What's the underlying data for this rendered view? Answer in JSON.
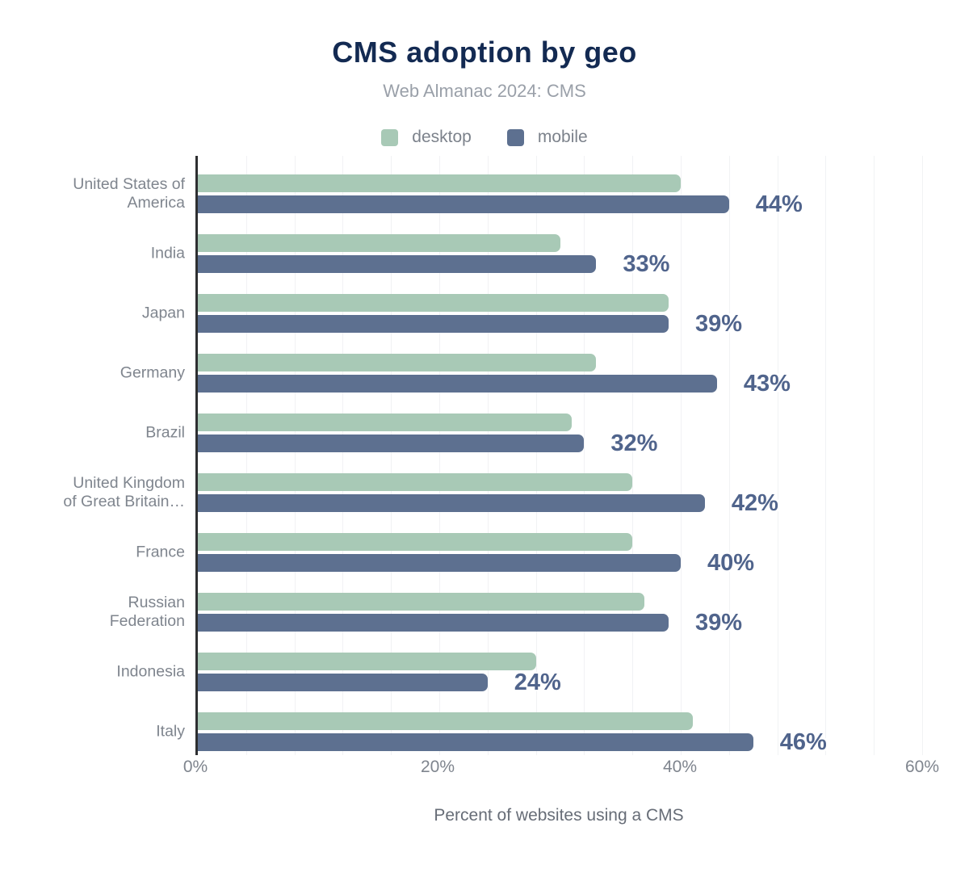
{
  "title": "CMS adoption by geo",
  "subtitle": "Web Almanac 2024: CMS",
  "colors": {
    "desktop_bar": "#a8c9b6",
    "mobile_bar": "#5d7090",
    "title_text": "#132a52",
    "subtitle_text": "#9aa0a9",
    "axis_line": "#2e2f31",
    "gridline": "#f1f2f4",
    "value_label_text": "#50648c",
    "category_label_text": "#7f858e"
  },
  "legend": {
    "position": "top",
    "items": [
      {
        "label": "desktop",
        "color": "#a8c9b6"
      },
      {
        "label": "mobile",
        "color": "#5d7090"
      }
    ]
  },
  "chart_data": {
    "type": "bar",
    "orientation": "horizontal",
    "title": "CMS adoption by geo",
    "subtitle": "Web Almanac 2024: CMS",
    "xlabel": "Percent of websites using a CMS",
    "xlim": [
      0,
      60
    ],
    "x_ticks": [
      "0%",
      "20%",
      "40%",
      "60%"
    ],
    "x_tick_values": [
      0,
      20,
      40,
      60
    ],
    "minor_gridline_step": 4,
    "grid": "vertical-minor-gridlines",
    "categories": [
      "United States of America",
      "India",
      "Japan",
      "Germany",
      "Brazil",
      "United Kingdom of Great Britain…",
      "France",
      "Russian Federation",
      "Indonesia",
      "Italy"
    ],
    "category_label_lines": [
      [
        "United States of",
        "America"
      ],
      [
        "India"
      ],
      [
        "Japan"
      ],
      [
        "Germany"
      ],
      [
        "Brazil"
      ],
      [
        "United Kingdom",
        "of Great Britain…"
      ],
      [
        "France"
      ],
      [
        "Russian",
        "Federation"
      ],
      [
        "Indonesia"
      ],
      [
        "Italy"
      ]
    ],
    "series": [
      {
        "name": "desktop",
        "color": "#a8c9b6",
        "values": [
          40,
          30,
          39,
          33,
          31,
          36,
          36,
          37,
          28,
          41
        ]
      },
      {
        "name": "mobile",
        "color": "#5d7090",
        "values": [
          44,
          33,
          39,
          43,
          32,
          42,
          40,
          39,
          24,
          46
        ]
      }
    ],
    "value_labels_series": "mobile",
    "value_labels": [
      "44%",
      "33%",
      "39%",
      "43%",
      "32%",
      "42%",
      "40%",
      "39%",
      "24%",
      "46%"
    ]
  }
}
